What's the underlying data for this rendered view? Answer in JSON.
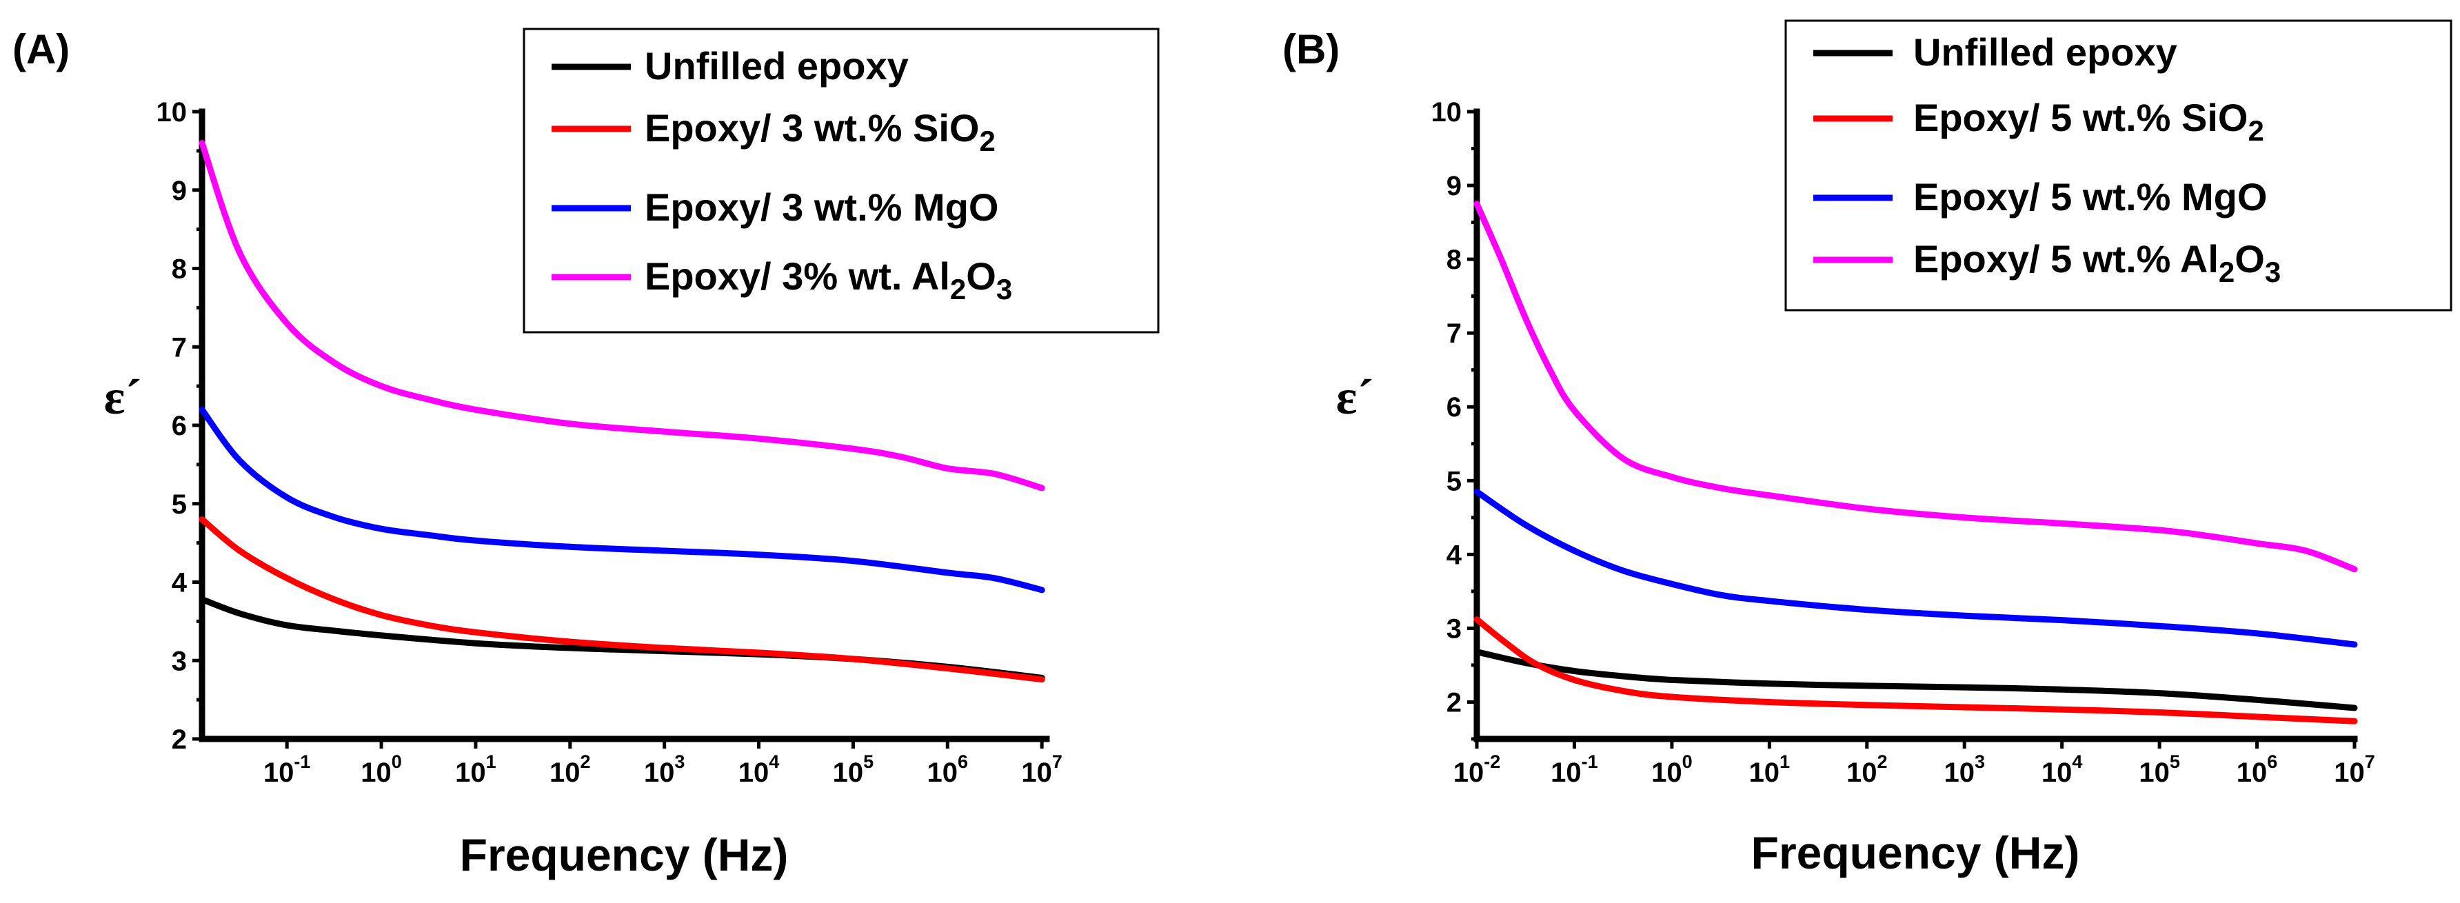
{
  "figure": {
    "panel_labels": [
      "(A)",
      "(B)"
    ]
  },
  "chart_data": [
    {
      "type": "line",
      "panel": "(A)",
      "xlabel": "Frequency (Hz)",
      "ylabel": "ε´",
      "xscale": "log",
      "xlim_log10": [
        -1.9,
        7.05
      ],
      "ylim": [
        2,
        10
      ],
      "x_ticks": [
        {
          "base": "10",
          "exp": "-1"
        },
        {
          "base": "10",
          "exp": "0"
        },
        {
          "base": "10",
          "exp": "1"
        },
        {
          "base": "10",
          "exp": "2"
        },
        {
          "base": "10",
          "exp": "3"
        },
        {
          "base": "10",
          "exp": "4"
        },
        {
          "base": "10",
          "exp": "5"
        },
        {
          "base": "10",
          "exp": "6"
        },
        {
          "base": "10",
          "exp": "7"
        }
      ],
      "y_ticks": [
        "2",
        "3",
        "4",
        "5",
        "6",
        "7",
        "8",
        "9",
        "10"
      ],
      "legend_position": "top-right",
      "series": [
        {
          "name": "Unfilled epoxy",
          "label_parts": [
            {
              "t": "Unfilled epoxy"
            }
          ],
          "color": "#000000",
          "x_log10": [
            -1.9,
            -1.5,
            -1,
            -0.5,
            0,
            1,
            2,
            3,
            4,
            5,
            6,
            7
          ],
          "y": [
            3.78,
            3.6,
            3.45,
            3.38,
            3.32,
            3.22,
            3.16,
            3.12,
            3.08,
            3.02,
            2.92,
            2.78
          ]
        },
        {
          "name": "Epoxy/ 3 wt.% SiO2",
          "label_parts": [
            {
              "t": "Epoxy/ 3 wt.% SiO"
            },
            {
              "t": "2",
              "sub": true
            }
          ],
          "color": "#ff0000",
          "x_log10": [
            -1.9,
            -1.5,
            -1,
            -0.5,
            0,
            0.5,
            1,
            2,
            3,
            4,
            5,
            6,
            7
          ],
          "y": [
            4.8,
            4.4,
            4.05,
            3.78,
            3.58,
            3.45,
            3.36,
            3.24,
            3.16,
            3.1,
            3.02,
            2.9,
            2.76
          ]
        },
        {
          "name": "Epoxy/ 3 wt.% MgO",
          "label_parts": [
            {
              "t": "Epoxy/ 3 wt.% MgO"
            }
          ],
          "color": "#0000ff",
          "x_log10": [
            -1.9,
            -1.5,
            -1,
            -0.5,
            0,
            0.5,
            1,
            2,
            3,
            4,
            5,
            6,
            6.5,
            7
          ],
          "y": [
            6.2,
            5.55,
            5.08,
            4.83,
            4.68,
            4.6,
            4.53,
            4.45,
            4.4,
            4.35,
            4.27,
            4.12,
            4.05,
            3.9
          ]
        },
        {
          "name": "Epoxy/ 3% wt. Al2O3",
          "label_parts": [
            {
              "t": "Epoxy/ 3% wt. Al"
            },
            {
              "t": "2",
              "sub": true
            },
            {
              "t": "O"
            },
            {
              "t": "3",
              "sub": true
            }
          ],
          "color": "#ff00ff",
          "x_log10": [
            -1.9,
            -1.5,
            -1,
            -0.5,
            0,
            0.5,
            1,
            2,
            3,
            4,
            5,
            5.5,
            6,
            6.5,
            7
          ],
          "y": [
            9.6,
            8.2,
            7.3,
            6.8,
            6.5,
            6.33,
            6.2,
            6.02,
            5.92,
            5.83,
            5.7,
            5.6,
            5.45,
            5.38,
            5.2
          ]
        }
      ]
    },
    {
      "type": "line",
      "panel": "(B)",
      "xlabel": "Frequency (Hz)",
      "ylabel": "ε´",
      "xscale": "log",
      "xlim_log10": [
        -2,
        7
      ],
      "ylim": [
        1.5,
        10
      ],
      "x_ticks": [
        {
          "base": "10",
          "exp": "-2"
        },
        {
          "base": "10",
          "exp": "-1"
        },
        {
          "base": "10",
          "exp": "0"
        },
        {
          "base": "10",
          "exp": "1"
        },
        {
          "base": "10",
          "exp": "2"
        },
        {
          "base": "10",
          "exp": "3"
        },
        {
          "base": "10",
          "exp": "4"
        },
        {
          "base": "10",
          "exp": "5"
        },
        {
          "base": "10",
          "exp": "6"
        },
        {
          "base": "10",
          "exp": "7"
        }
      ],
      "y_ticks": [
        "2",
        "3",
        "4",
        "5",
        "6",
        "7",
        "8",
        "9",
        "10"
      ],
      "legend_position": "top-right",
      "series": [
        {
          "name": "Unfilled epoxy",
          "label_parts": [
            {
              "t": "Unfilled epoxy"
            }
          ],
          "color": "#000000",
          "x_log10": [
            -2,
            -1.5,
            -1,
            -0.5,
            0,
            1,
            2,
            3,
            4,
            5,
            6,
            7
          ],
          "y": [
            2.68,
            2.53,
            2.42,
            2.35,
            2.3,
            2.25,
            2.22,
            2.2,
            2.17,
            2.12,
            2.03,
            1.92
          ]
        },
        {
          "name": "Epoxy/ 5 wt.% SiO2",
          "label_parts": [
            {
              "t": "Epoxy/ 5 wt.% SiO"
            },
            {
              "t": "2",
              "sub": true
            }
          ],
          "color": "#ff0000",
          "x_log10": [
            -2,
            -1.7,
            -1.4,
            -1,
            -0.5,
            0,
            1,
            2,
            3,
            4,
            5,
            6,
            7
          ],
          "y": [
            3.12,
            2.8,
            2.52,
            2.3,
            2.15,
            2.07,
            2.0,
            1.96,
            1.93,
            1.9,
            1.86,
            1.8,
            1.74
          ]
        },
        {
          "name": "Epoxy/ 5 wt.% MgO",
          "label_parts": [
            {
              "t": "Epoxy/ 5 wt.% MgO"
            }
          ],
          "color": "#0000ff",
          "x_log10": [
            -2,
            -1.5,
            -1,
            -0.5,
            0,
            0.5,
            1,
            2,
            3,
            4,
            5,
            6,
            7
          ],
          "y": [
            4.85,
            4.4,
            4.05,
            3.78,
            3.6,
            3.45,
            3.37,
            3.25,
            3.17,
            3.11,
            3.03,
            2.93,
            2.78
          ]
        },
        {
          "name": "Epoxy/ 5 wt.% Al2O3",
          "label_parts": [
            {
              "t": "Epoxy/ 5 wt.% Al"
            },
            {
              "t": "2",
              "sub": true
            },
            {
              "t": "O"
            },
            {
              "t": "3",
              "sub": true
            }
          ],
          "color": "#ff00ff",
          "x_log10": [
            -2,
            -1.75,
            -1.5,
            -1.25,
            -1,
            -0.5,
            0,
            0.5,
            1,
            2,
            3,
            4,
            5,
            5.5,
            6,
            6.5,
            7
          ],
          "y": [
            8.75,
            8.0,
            7.2,
            6.5,
            5.95,
            5.3,
            5.05,
            4.9,
            4.8,
            4.62,
            4.5,
            4.42,
            4.33,
            4.25,
            4.15,
            4.05,
            3.8
          ]
        }
      ]
    }
  ]
}
